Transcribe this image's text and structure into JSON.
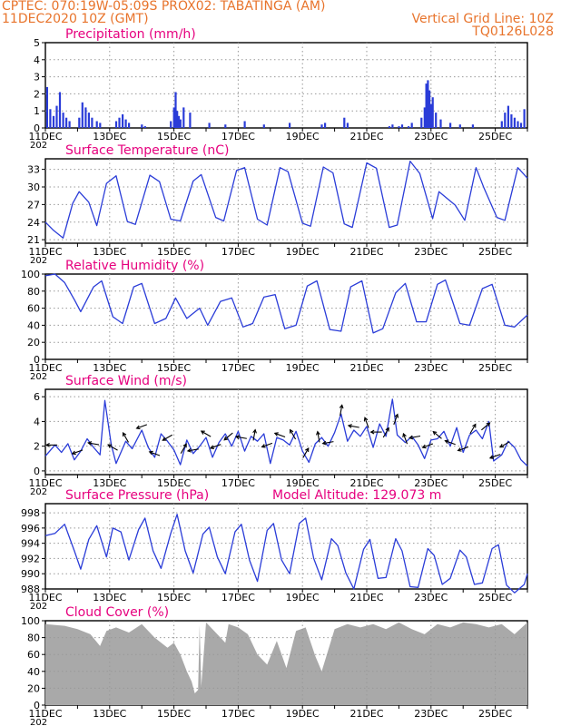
{
  "header": {
    "line1": "CPTEC:   070:19W-05:09S   PROX02: TABATINGA (AM)",
    "line2": "11DEC2020 10Z (GMT)",
    "grid_note": "Vertical Grid Line: 10Z",
    "run_code": "TQ0126L028"
  },
  "colors": {
    "header": "#e8742c",
    "title": "#e6007e",
    "series": "#2a3cd8",
    "cloud": "#a9a9a9",
    "grid": "#999999"
  },
  "x_ticks": [
    "11DEC",
    "13DEC",
    "15DEC",
    "17DEC",
    "19DEC",
    "21DEC",
    "23DEC",
    "25DEC"
  ],
  "x_tick_days": [
    0,
    2,
    4,
    6,
    8,
    10,
    12,
    14
  ],
  "x_start_partial": "202",
  "chart_data": [
    {
      "type": "bar",
      "title": "Precipitation (mm/h)",
      "ylim": [
        0,
        5
      ],
      "yticks": [
        0,
        1,
        2,
        3,
        4,
        5
      ],
      "x_unit": "days from 11DEC2020 10Z",
      "x": [
        0.05,
        0.15,
        0.25,
        0.35,
        0.45,
        0.55,
        0.65,
        0.75,
        1.05,
        1.15,
        1.25,
        1.35,
        1.45,
        1.6,
        1.7,
        2.2,
        2.3,
        2.4,
        2.5,
        2.6,
        3.0,
        3.1,
        3.9,
        4.0,
        4.05,
        4.1,
        4.15,
        4.2,
        4.3,
        4.5,
        5.1,
        5.6,
        6.2,
        6.8,
        7.6,
        8.6,
        8.7,
        9.3,
        9.4,
        10.7,
        10.8,
        11.0,
        11.1,
        11.3,
        11.4,
        11.7,
        11.8,
        11.85,
        11.9,
        11.95,
        12.0,
        12.05,
        12.15,
        12.3,
        12.6,
        12.9,
        13.3,
        14.2,
        14.3,
        14.4,
        14.5,
        14.6,
        14.7,
        14.8,
        14.9
      ],
      "values": [
        2.4,
        1.1,
        0.7,
        1.3,
        2.1,
        0.9,
        0.6,
        0.4,
        0.6,
        1.5,
        1.2,
        0.9,
        0.6,
        0.4,
        0.3,
        0.4,
        0.6,
        0.8,
        0.5,
        0.3,
        0.2,
        0.1,
        0.4,
        1.2,
        2.1,
        1.0,
        0.7,
        0.5,
        1.2,
        0.9,
        0.3,
        0.2,
        0.4,
        0.2,
        0.3,
        0.2,
        0.3,
        0.6,
        0.3,
        0.1,
        0.2,
        0.1,
        0.2,
        0.1,
        0.3,
        0.6,
        1.2,
        2.6,
        2.8,
        2.2,
        1.4,
        1.8,
        0.9,
        0.5,
        0.3,
        0.2,
        0.2,
        0.4,
        0.9,
        1.3,
        0.8,
        0.6,
        0.4,
        0.3,
        1.1
      ]
    },
    {
      "type": "line",
      "title": "Surface Temperature (nC)",
      "ylim": [
        20.4,
        34.8
      ],
      "yticks": [
        21,
        24,
        27,
        30,
        33
      ],
      "x_unit": "days from 11DEC2020 10Z",
      "x": [
        0,
        0.25,
        0.55,
        0.85,
        1.05,
        1.35,
        1.6,
        1.9,
        2.2,
        2.55,
        2.8,
        3.25,
        3.55,
        3.9,
        4.2,
        4.6,
        4.85,
        5.3,
        5.55,
        5.95,
        6.2,
        6.6,
        6.9,
        7.3,
        7.55,
        8.0,
        8.25,
        8.65,
        8.95,
        9.3,
        9.55,
        10.0,
        10.3,
        10.7,
        10.95,
        11.35,
        11.65,
        12.05,
        12.25,
        12.75,
        13.05,
        13.4,
        13.65,
        14.05,
        14.3,
        14.7,
        15.0
      ],
      "values": [
        24.0,
        22.6,
        21.3,
        27.2,
        29.2,
        27.4,
        23.4,
        30.6,
        31.9,
        24.1,
        23.6,
        32.0,
        30.9,
        24.5,
        24.2,
        31.0,
        32.1,
        24.8,
        24.2,
        32.8,
        33.3,
        24.5,
        23.5,
        33.3,
        32.6,
        23.8,
        23.3,
        33.4,
        32.4,
        23.7,
        23.1,
        34.1,
        33.2,
        23.1,
        23.5,
        34.4,
        32.3,
        24.6,
        29.2,
        26.9,
        24.3,
        33.3,
        29.8,
        24.8,
        24.3,
        33.3,
        31.5
      ]
    },
    {
      "type": "line",
      "title": "Relative Humidity (%)",
      "ylim": [
        0,
        100
      ],
      "yticks": [
        0,
        20,
        40,
        60,
        80,
        100
      ],
      "x_unit": "days from 11DEC2020 10Z",
      "x": [
        0,
        0.3,
        0.6,
        0.9,
        1.1,
        1.5,
        1.75,
        2.1,
        2.4,
        2.75,
        3.0,
        3.4,
        3.75,
        4.05,
        4.4,
        4.8,
        5.05,
        5.45,
        5.8,
        6.15,
        6.45,
        6.8,
        7.15,
        7.45,
        7.8,
        8.15,
        8.45,
        8.85,
        9.2,
        9.5,
        9.85,
        10.2,
        10.5,
        10.9,
        11.2,
        11.55,
        11.85,
        12.2,
        12.45,
        12.9,
        13.2,
        13.6,
        13.9,
        14.3,
        14.6,
        15.0
      ],
      "values": [
        98,
        100,
        90,
        70,
        56,
        85,
        92,
        50,
        42,
        85,
        89,
        42,
        48,
        72,
        48,
        60,
        40,
        68,
        72,
        38,
        42,
        73,
        76,
        36,
        40,
        86,
        92,
        35,
        33,
        85,
        92,
        31,
        36,
        78,
        89,
        44,
        44,
        88,
        93,
        42,
        40,
        83,
        88,
        40,
        38,
        52
      ]
    },
    {
      "type": "line",
      "title": "Surface Wind (m/s)",
      "ylim": [
        -0.3,
        6.6
      ],
      "yticks": [
        0,
        2,
        4,
        6
      ],
      "x_unit": "days from 11DEC2020 10Z",
      "x": [
        0,
        0.3,
        0.5,
        0.7,
        0.9,
        1.1,
        1.3,
        1.5,
        1.7,
        1.85,
        2.05,
        2.2,
        2.5,
        2.7,
        3.0,
        3.2,
        3.4,
        3.6,
        3.8,
        4.0,
        4.2,
        4.4,
        4.6,
        4.8,
        5.0,
        5.2,
        5.4,
        5.6,
        5.8,
        6.0,
        6.2,
        6.4,
        6.6,
        6.8,
        7.0,
        7.2,
        7.4,
        7.6,
        7.8,
        8.0,
        8.2,
        8.4,
        8.6,
        8.8,
        9.0,
        9.2,
        9.4,
        9.6,
        9.8,
        10.0,
        10.2,
        10.4,
        10.6,
        10.8,
        10.95,
        11.2,
        11.4,
        11.6,
        11.8,
        12.0,
        12.2,
        12.4,
        12.6,
        12.8,
        13.0,
        13.2,
        13.4,
        13.6,
        13.8,
        13.95,
        14.2,
        14.4,
        14.6,
        14.8,
        15.0
      ],
      "values": [
        1.2,
        2.1,
        1.5,
        2.2,
        0.9,
        1.6,
        2.6,
        1.9,
        1.3,
        5.7,
        2.1,
        0.6,
        2.4,
        1.8,
        3.3,
        1.9,
        1.1,
        3.0,
        2.4,
        1.7,
        0.5,
        2.5,
        1.4,
        2.0,
        2.7,
        1.1,
        2.3,
        3.0,
        2.0,
        3.2,
        1.6,
        2.8,
        2.4,
        3.0,
        0.6,
        2.7,
        2.5,
        2.1,
        3.2,
        1.6,
        0.7,
        2.2,
        2.7,
        2.0,
        3.1,
        4.6,
        2.4,
        3.3,
        2.8,
        3.6,
        1.9,
        3.8,
        2.8,
        5.8,
        2.9,
        2.3,
        2.8,
        2.1,
        1.0,
        2.5,
        2.6,
        3.2,
        2.0,
        3.5,
        1.5,
        2.9,
        3.3,
        2.6,
        4.0,
        0.8,
        1.3,
        2.4,
        1.9,
        0.9,
        0.4
      ]
    },
    {
      "type": "line",
      "title": "Surface Pressure (hPa)",
      "annotation": "Model Altitude: 129.073 m",
      "ylim": [
        988,
        999.2
      ],
      "yticks": [
        988,
        990,
        992,
        994,
        996,
        998
      ],
      "x_unit": "days from 11DEC2020 10Z",
      "x": [
        0,
        0.3,
        0.6,
        0.9,
        1.1,
        1.35,
        1.6,
        1.9,
        2.1,
        2.35,
        2.6,
        2.9,
        3.1,
        3.35,
        3.6,
        3.9,
        4.1,
        4.35,
        4.6,
        4.9,
        5.1,
        5.35,
        5.6,
        5.9,
        6.1,
        6.35,
        6.6,
        6.9,
        7.1,
        7.35,
        7.6,
        7.9,
        8.1,
        8.35,
        8.6,
        8.9,
        9.1,
        9.35,
        9.6,
        9.9,
        10.1,
        10.35,
        10.6,
        10.9,
        11.1,
        11.35,
        11.6,
        11.9,
        12.1,
        12.35,
        12.6,
        12.9,
        13.1,
        13.35,
        13.6,
        13.9,
        14.1,
        14.35,
        14.6,
        14.9,
        15.0
      ],
      "values": [
        995,
        995.3,
        996.5,
        993,
        990.6,
        994.5,
        996.3,
        992.2,
        996,
        995.5,
        991.8,
        995.8,
        997.3,
        993,
        990.7,
        995.3,
        997.8,
        993,
        990.1,
        995.2,
        996.1,
        992.2,
        990,
        995.5,
        996.5,
        991.8,
        989,
        995.7,
        996.6,
        991.8,
        990,
        996.6,
        997.3,
        992,
        989.2,
        994.6,
        993.7,
        990.1,
        988,
        993.2,
        994.5,
        989.4,
        989.5,
        994.6,
        993,
        988.3,
        988.2,
        993.3,
        992.4,
        988.6,
        989.4,
        993.1,
        992.2,
        988.6,
        988.8,
        993.3,
        993.8,
        988.5,
        987.5,
        988.6,
        990
      ]
    },
    {
      "type": "area",
      "title": "Cloud Cover (%)",
      "ylim": [
        0,
        100
      ],
      "yticks": [
        0,
        20,
        40,
        60,
        80,
        100
      ],
      "x_unit": "days from 11DEC2020 10Z",
      "x": [
        0,
        0.6,
        1.0,
        1.4,
        1.7,
        1.9,
        2.2,
        2.6,
        3.0,
        3.4,
        3.8,
        4.0,
        4.2,
        4.4,
        4.55,
        4.65,
        4.75,
        4.8,
        4.85,
        5.0,
        5.3,
        5.6,
        5.7,
        6.0,
        6.3,
        6.6,
        6.9,
        7.2,
        7.5,
        7.8,
        8.1,
        8.4,
        8.6,
        9.0,
        9.4,
        9.8,
        10.2,
        10.6,
        11.0,
        11.4,
        11.8,
        12.2,
        12.6,
        13.0,
        13.4,
        13.8,
        14.2,
        14.6,
        15.0
      ],
      "values": [
        96,
        94,
        90,
        84,
        70,
        88,
        92,
        86,
        96,
        80,
        68,
        74,
        60,
        40,
        28,
        14,
        18,
        95,
        22,
        98,
        86,
        74,
        96,
        92,
        84,
        60,
        48,
        76,
        44,
        88,
        92,
        58,
        40,
        90,
        96,
        92,
        96,
        90,
        98,
        90,
        84,
        96,
        92,
        98,
        96,
        92,
        96,
        84,
        98
      ]
    }
  ],
  "wind_arrows": {
    "x": [
      0.2,
      1.0,
      1.5,
      2.1,
      2.5,
      3.0,
      3.4,
      3.8,
      4.3,
      4.6,
      5.0,
      5.3,
      5.7,
      6.1,
      6.5,
      6.9,
      7.3,
      7.7,
      8.1,
      8.5,
      8.8,
      9.2,
      9.6,
      10.0,
      10.3,
      10.6,
      10.9,
      11.2,
      11.5,
      11.9,
      12.2,
      12.6,
      13.0,
      13.3,
      13.7,
      14.0,
      14.3
    ],
    "dir_deg": [
      180,
      200,
      170,
      150,
      120,
      200,
      160,
      210,
      60,
      190,
      150,
      200,
      220,
      170,
      80,
      200,
      160,
      120,
      60,
      100,
      190,
      80,
      170,
      110,
      180,
      60,
      70,
      110,
      190,
      200,
      140,
      160,
      200,
      60,
      40,
      200,
      210
    ]
  }
}
